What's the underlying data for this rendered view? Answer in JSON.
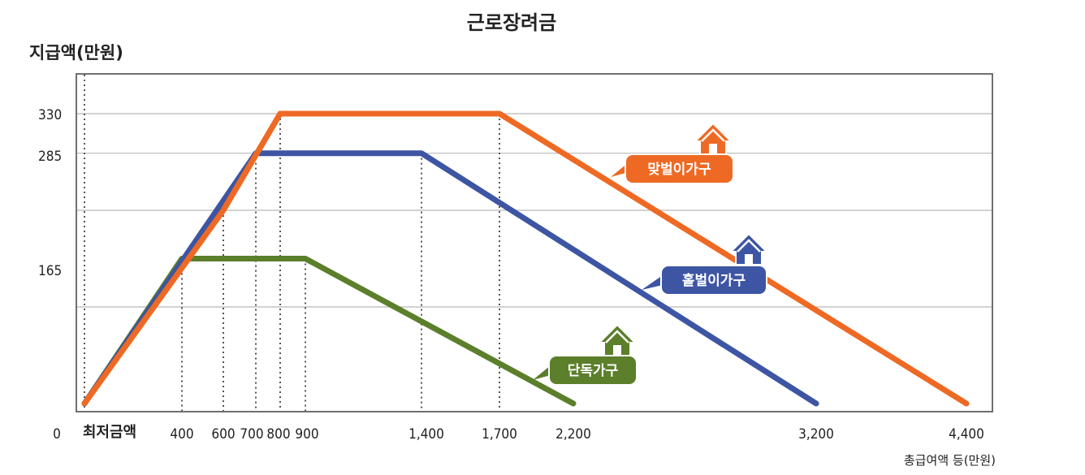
{
  "chart_data": {
    "type": "line",
    "title": "근로장려금",
    "ylabel": "지급액(만원)",
    "xlabel": "총급여액 등(만원)",
    "x_ticks": [
      "0",
      "최저금액",
      "400",
      "600",
      "700",
      "800",
      "900",
      "1,400",
      "1,700",
      "2,200",
      "3,200",
      "4,400"
    ],
    "y_ticks": [
      "330",
      "285",
      "165"
    ],
    "grid": true,
    "series": [
      {
        "name": "맞벌이가구",
        "color": "#ee6a24",
        "points": [
          [
            0,
            0
          ],
          [
            600,
            220
          ],
          [
            800,
            330
          ],
          [
            1700,
            330
          ],
          [
            4400,
            0
          ]
        ]
      },
      {
        "name": "홑벌이가구",
        "color": "#3d55a3",
        "points": [
          [
            0,
            0
          ],
          [
            700,
            285
          ],
          [
            1400,
            285
          ],
          [
            3200,
            0
          ]
        ]
      },
      {
        "name": "단독가구",
        "color": "#5b7f2a",
        "points": [
          [
            0,
            0
          ],
          [
            400,
            165
          ],
          [
            900,
            165
          ],
          [
            2200,
            0
          ]
        ]
      }
    ]
  },
  "colors": {
    "frame": "#6f6f6f",
    "grid": "#b8b8b8",
    "guide": "#555555"
  },
  "icons": [
    "house-icon"
  ]
}
